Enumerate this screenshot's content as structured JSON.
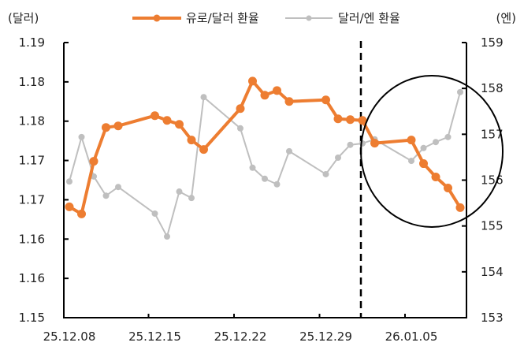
{
  "chart_data": {
    "type": "line",
    "title": "",
    "left_axis_unit": "(달러)",
    "right_axis_unit": "(엔)",
    "xlabel": "",
    "ylabel_left": "달러",
    "ylabel_right": "엔",
    "y_left": {
      "min": 1.15,
      "max": 1.185,
      "step": 0.005,
      "tick_labels": [
        "1.15",
        "1.16",
        "1.16",
        "1.17",
        "1.17",
        "1.18",
        "1.18",
        "1.19"
      ]
    },
    "y_right": {
      "min": 153,
      "max": 159,
      "step": 1,
      "tick_labels": [
        "153",
        "154",
        "155",
        "156",
        "157",
        "158",
        "159"
      ]
    },
    "x_tick_labels": [
      "25.12.08",
      "25.12.15",
      "25.12.22",
      "25.12.29",
      "26.01.05"
    ],
    "x_tick_dates": [
      "2025-12-08",
      "2025-12-15",
      "2025-12-22",
      "2025-12-29",
      "2026-01-05"
    ],
    "x_start": "2025-12-08",
    "x_end": "2026-01-09",
    "legend": {
      "position": "top",
      "entries": [
        "유로/달러 환율",
        "달러/엔 환율"
      ]
    },
    "grid": false,
    "annotations": [
      {
        "type": "vertical-dashed-line",
        "date": "2026-01-01"
      },
      {
        "type": "ellipse",
        "description": "highlight of early January 2026 moves",
        "from": "2026-01-01",
        "to": "2026-01-09"
      }
    ],
    "x": [
      "2025-12-08",
      "2025-12-09",
      "2025-12-10",
      "2025-12-11",
      "2025-12-12",
      "2025-12-15",
      "2025-12-16",
      "2025-12-17",
      "2025-12-18",
      "2025-12-19",
      "2025-12-22",
      "2025-12-23",
      "2025-12-24",
      "2025-12-25",
      "2025-12-26",
      "2025-12-29",
      "2025-12-30",
      "2025-12-31",
      "2026-01-01",
      "2026-01-02",
      "2026-01-05",
      "2026-01-06",
      "2026-01-07",
      "2026-01-08",
      "2026-01-09"
    ],
    "series": [
      {
        "name": "유로/달러 환율",
        "axis": "left",
        "color": "#ED7D31",
        "values": [
          1.1641,
          1.1632,
          1.1699,
          1.1742,
          1.1744,
          1.1757,
          1.1751,
          1.1746,
          1.1726,
          1.1714,
          1.1766,
          1.1801,
          1.1783,
          1.1789,
          1.1775,
          1.1777,
          1.1753,
          1.1752,
          1.1751,
          1.1722,
          1.1726,
          1.1696,
          1.1679,
          1.1665,
          1.164
        ]
      },
      {
        "name": "달러/엔 환율",
        "axis": "right",
        "color": "#BFBFBF",
        "values": [
          155.97,
          156.94,
          156.08,
          155.66,
          155.85,
          155.27,
          154.77,
          155.75,
          155.61,
          157.81,
          157.13,
          156.27,
          156.03,
          155.91,
          156.63,
          156.13,
          156.49,
          156.77,
          156.8,
          156.89,
          156.42,
          156.7,
          156.83,
          156.94,
          157.92
        ]
      }
    ]
  },
  "colors": {
    "euro_usd": "#ED7D31",
    "usd_jpy": "#BFBFBF",
    "axis": "#000000"
  }
}
